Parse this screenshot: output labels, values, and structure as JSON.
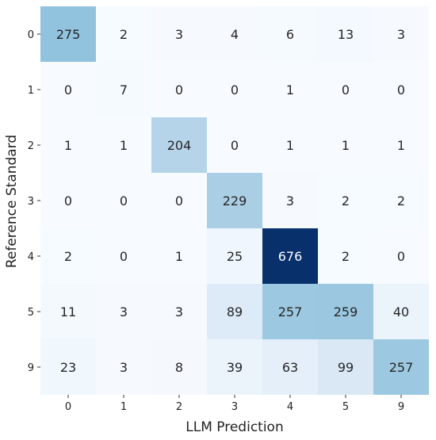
{
  "chart_data": {
    "type": "heatmap",
    "title": "",
    "xlabel": "LLM Prediction",
    "ylabel": "Reference Standard",
    "x_categories": [
      "0",
      "1",
      "2",
      "3",
      "4",
      "5",
      "9"
    ],
    "y_categories": [
      "0",
      "1",
      "2",
      "3",
      "4",
      "5",
      "9"
    ],
    "values": [
      [
        275,
        2,
        3,
        4,
        6,
        13,
        3
      ],
      [
        0,
        7,
        0,
        0,
        1,
        0,
        0
      ],
      [
        1,
        1,
        204,
        0,
        1,
        1,
        1
      ],
      [
        0,
        0,
        0,
        229,
        3,
        2,
        2
      ],
      [
        2,
        0,
        1,
        25,
        676,
        2,
        0
      ],
      [
        11,
        3,
        3,
        89,
        257,
        259,
        40
      ],
      [
        23,
        3,
        8,
        39,
        63,
        99,
        257
      ]
    ],
    "colormap": "Blues",
    "vmin": 0,
    "vmax": 676,
    "annotations": true,
    "grid": false,
    "legend": "none"
  }
}
